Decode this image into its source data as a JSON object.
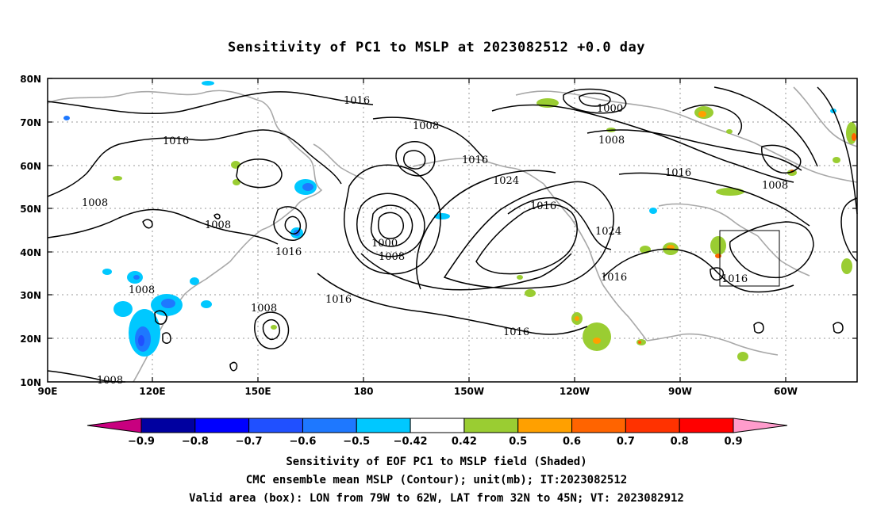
{
  "title": "Sensitivity of PC1 to MSLP at 2023082512 +0.0 day",
  "lat_labels": [
    "80N",
    "70N",
    "60N",
    "50N",
    "40N",
    "30N",
    "20N",
    "10N"
  ],
  "lon_labels": [
    "90E",
    "120E",
    "150E",
    "180",
    "150W",
    "120W",
    "90W",
    "60W"
  ],
  "colorbar": {
    "labels": [
      "-0.9",
      "-0.8",
      "-0.7",
      "-0.6",
      "-0.5",
      "-0.42",
      "0.42",
      "0.5",
      "0.6",
      "0.7",
      "0.8",
      "0.9"
    ],
    "colors": [
      "#c8007f",
      "#0000a0",
      "#0000ff",
      "#2050ff",
      "#1e78ff",
      "#00c8ff",
      "#ffffff",
      "#9acd32",
      "#ffa000",
      "#ff6400",
      "#ff3200",
      "#ff0000",
      "#ff9ccc"
    ]
  },
  "contour_labels": [
    "1016",
    "1016",
    "1008",
    "1008",
    "1008",
    "1016",
    "1008",
    "1008",
    "1000",
    "1008",
    "1016",
    "1024",
    "1016",
    "1016",
    "1000",
    "1008",
    "1016",
    "1016",
    "1024",
    "1016",
    "1016",
    "1008",
    "1008"
  ],
  "caption": {
    "line1": "Sensitivity of EOF PC1 to MSLP field (Shaded)",
    "line2": "CMC ensemble mean MSLP (Contour); unit(mb); IT:2023082512",
    "line3": "Valid area (box): LON from 79W to 62W, LAT from 32N to 45N; VT: 2023082912"
  }
}
